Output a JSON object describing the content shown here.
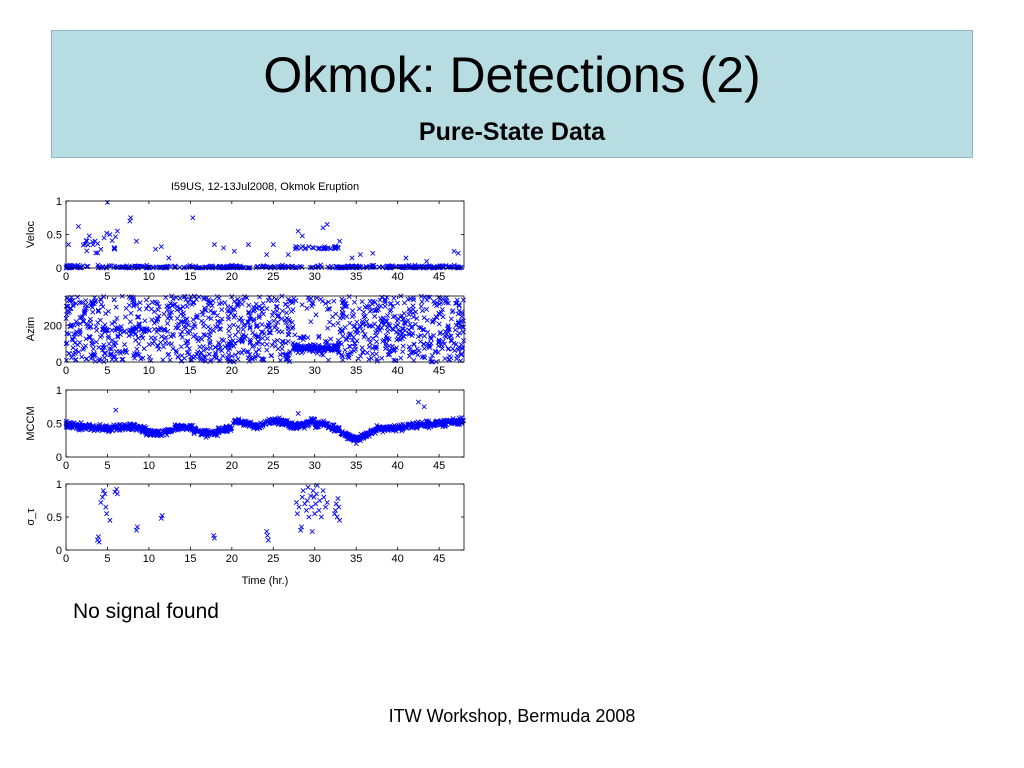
{
  "slide": {
    "title": "Okmok: Detections (2)",
    "subtitle": "Pure-State Data",
    "caption": "No signal found",
    "footer": "ITW Workshop, Bermuda 2008"
  },
  "colors": {
    "header_bg": "#b7dde3",
    "marker": "#0000ff",
    "axis": "#000000"
  },
  "chart_data": {
    "type": "scatter",
    "title": "I59US, 12-13Jul2008, Okmok Eruption",
    "xlabel": "Time (hr.)",
    "x_ticks": [
      0,
      5,
      10,
      15,
      20,
      25,
      30,
      35,
      40,
      45
    ],
    "xlim": [
      0,
      48
    ],
    "marker": "x",
    "panels": [
      {
        "ylabel": "Veloc",
        "ylim": [
          0,
          1
        ],
        "y_ticks": [
          0,
          0.5,
          1
        ],
        "y_tick_labels": [
          "0",
          "0.5",
          "1"
        ],
        "profile": "veloc",
        "points": [
          [
            0.3,
            0.35
          ],
          [
            1.5,
            0.62
          ],
          [
            2.8,
            0.48
          ],
          [
            3.5,
            0.4
          ],
          [
            4.2,
            0.28
          ],
          [
            4.6,
            0.45
          ],
          [
            5,
            0.98
          ],
          [
            5.3,
            0.5
          ],
          [
            5.8,
            0.3
          ],
          [
            6.2,
            0.55
          ],
          [
            7.7,
            0.7
          ],
          [
            7.8,
            0.75
          ],
          [
            8.5,
            0.4
          ],
          [
            10.8,
            0.28
          ],
          [
            11.5,
            0.32
          ],
          [
            12.4,
            0.15
          ],
          [
            15.3,
            0.75
          ],
          [
            17.9,
            0.35
          ],
          [
            19,
            0.3
          ],
          [
            20.3,
            0.25
          ],
          [
            22,
            0.35
          ],
          [
            24.2,
            0.2
          ],
          [
            25,
            0.35
          ],
          [
            26.8,
            0.2
          ],
          [
            28,
            0.55
          ],
          [
            28.5,
            0.48
          ],
          [
            31,
            0.6
          ],
          [
            31.5,
            0.65
          ],
          [
            33,
            0.4
          ],
          [
            34.5,
            0.15
          ],
          [
            35.5,
            0.2
          ],
          [
            37,
            0.22
          ],
          [
            41,
            0.15
          ],
          [
            43.5,
            0.1
          ],
          [
            46.8,
            0.25
          ],
          [
            47.3,
            0.22
          ]
        ]
      },
      {
        "ylabel": "Azim",
        "ylim": [
          0,
          360
        ],
        "y_ticks": [
          0,
          200
        ],
        "y_tick_labels": [
          "0",
          "200"
        ],
        "profile": "azim",
        "points": []
      },
      {
        "ylabel": "MCCM",
        "ylim": [
          0,
          1
        ],
        "y_ticks": [
          0,
          0.5,
          1
        ],
        "y_tick_labels": [
          "0",
          "0.5",
          "1"
        ],
        "profile": "mccm",
        "points": [
          [
            6,
            0.7
          ],
          [
            28,
            0.65
          ],
          [
            35,
            0.2
          ],
          [
            42.5,
            0.82
          ],
          [
            43.2,
            0.75
          ]
        ]
      },
      {
        "ylabel": "σ_τ",
        "ylim": [
          0,
          1
        ],
        "y_ticks": [
          0,
          0.5,
          1
        ],
        "y_tick_labels": [
          "0",
          "0.5",
          "1"
        ],
        "profile": "sigma",
        "points": [
          [
            3.8,
            0.15
          ],
          [
            3.9,
            0.2
          ],
          [
            4,
            0.12
          ],
          [
            4.2,
            0.72
          ],
          [
            4.4,
            0.8
          ],
          [
            4.5,
            0.9
          ],
          [
            4.7,
            0.85
          ],
          [
            4.8,
            0.65
          ],
          [
            4.9,
            0.55
          ],
          [
            5.3,
            0.45
          ],
          [
            5.9,
            0.88
          ],
          [
            6.1,
            0.92
          ],
          [
            6.2,
            0.85
          ],
          [
            8.5,
            0.3
          ],
          [
            8.6,
            0.35
          ],
          [
            11.5,
            0.48
          ],
          [
            11.6,
            0.52
          ],
          [
            17.8,
            0.22
          ],
          [
            17.9,
            0.18
          ],
          [
            24.2,
            0.28
          ],
          [
            24.3,
            0.22
          ],
          [
            24.4,
            0.15
          ],
          [
            27.8,
            0.72
          ],
          [
            27.9,
            0.55
          ],
          [
            28.1,
            0.65
          ],
          [
            28.3,
            0.3
          ],
          [
            28.4,
            0.35
          ],
          [
            28.5,
            0.8
          ],
          [
            28.6,
            0.9
          ],
          [
            28.8,
            0.7
          ],
          [
            29,
            0.6
          ],
          [
            29.1,
            0.75
          ],
          [
            29.2,
            0.95
          ],
          [
            29.3,
            0.5
          ],
          [
            29.5,
            0.82
          ],
          [
            29.6,
            0.65
          ],
          [
            29.7,
            0.28
          ],
          [
            29.8,
            0.9
          ],
          [
            29.9,
            0.8
          ],
          [
            30,
            0.55
          ],
          [
            30.1,
            0.7
          ],
          [
            30.2,
            0.85
          ],
          [
            30.3,
            0.98
          ],
          [
            30.5,
            0.6
          ],
          [
            30.6,
            0.75
          ],
          [
            30.8,
            0.5
          ],
          [
            31,
            0.9
          ],
          [
            31.1,
            0.8
          ],
          [
            31.3,
            0.65
          ],
          [
            31.5,
            0.72
          ],
          [
            32.4,
            0.55
          ],
          [
            32.5,
            0.6
          ],
          [
            32.6,
            0.7
          ],
          [
            32.7,
            0.5
          ],
          [
            32.8,
            0.78
          ],
          [
            32.9,
            0.65
          ],
          [
            33,
            0.45
          ]
        ]
      }
    ]
  }
}
